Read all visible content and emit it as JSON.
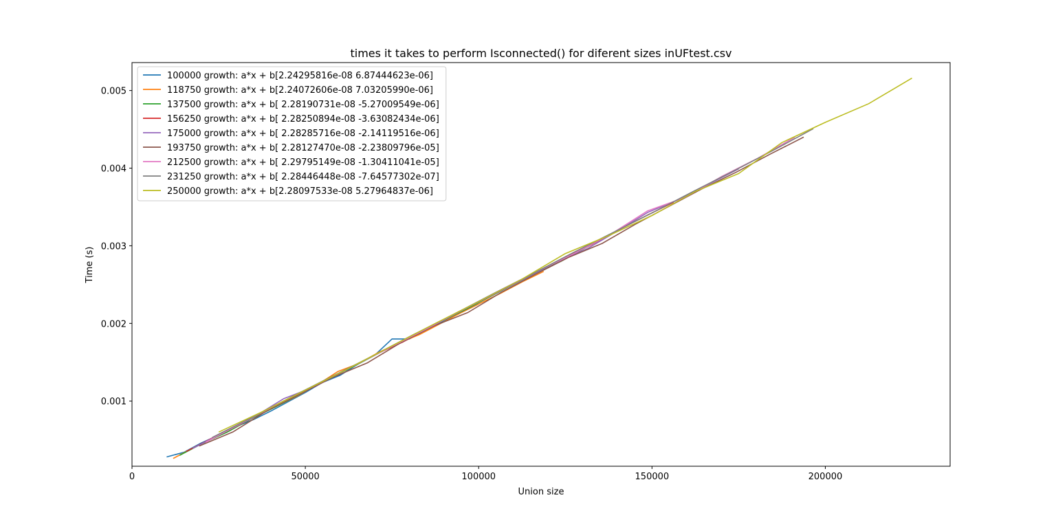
{
  "chart_data": {
    "type": "line",
    "title": "times it takes to perform Isconnected() for diferent sizes inUFtest.csv",
    "xlabel": "Union size",
    "ylabel": "Time  (s)",
    "xlim": [
      0,
      236000
    ],
    "ylim": [
      0.00016,
      0.00536
    ],
    "xticks": [
      0,
      50000,
      100000,
      150000,
      200000
    ],
    "xtick_labels": [
      "0",
      "50000",
      "100000",
      "150000",
      "200000"
    ],
    "yticks": [
      0.001,
      0.002,
      0.003,
      0.004,
      0.005
    ],
    "ytick_labels": [
      "0.001",
      "0.002",
      "0.003",
      "0.004",
      "0.005"
    ],
    "grid": false,
    "legend_position": "upper-left",
    "series": [
      {
        "name": "100000 growth: a*x + b[2.24295816e-08 6.87444623e-06]",
        "color": "#1f77b4",
        "x": [
          10000,
          15000,
          20000,
          25000,
          30000,
          35000,
          40000,
          45000,
          50000,
          55000,
          60000,
          65000,
          70000,
          75000,
          80000,
          85000,
          90000,
          95000,
          100000
        ],
        "y": [
          0.00028,
          0.00034,
          0.00046,
          0.00056,
          0.00067,
          0.00076,
          0.00087,
          0.00099,
          0.00111,
          0.00124,
          0.00133,
          0.00147,
          0.00159,
          0.0018,
          0.0018,
          0.00192,
          0.00203,
          0.00214,
          0.00225
        ]
      },
      {
        "name": "118750 growth: a*x + b[2.24072606e-08 7.03205990e-06]",
        "color": "#ff7f0e",
        "x": [
          11875,
          17813,
          23750,
          29688,
          35625,
          41563,
          47500,
          53438,
          59375,
          65313,
          71250,
          77188,
          83125,
          89063,
          95000,
          100938,
          106875,
          112813,
          118750
        ],
        "y": [
          0.00026,
          0.0004,
          0.00053,
          0.00066,
          0.0008,
          0.00093,
          0.00106,
          0.00121,
          0.00138,
          0.00148,
          0.00163,
          0.00175,
          0.00186,
          0.002,
          0.00214,
          0.00227,
          0.0024,
          0.00254,
          0.00267
        ]
      },
      {
        "name": "137500 growth: a*x + b[ 2.28190731e-08 -5.27009549e-06]",
        "color": "#2ca02c",
        "x": [
          13750,
          20625,
          27500,
          34375,
          41250,
          48125,
          55000,
          61875,
          68750,
          75625,
          82500,
          89375,
          96250,
          103125,
          110000,
          116875,
          123750,
          130625,
          137500
        ],
        "y": [
          0.0003,
          0.00046,
          0.0006,
          0.00077,
          0.00092,
          0.00108,
          0.00125,
          0.0014,
          0.00156,
          0.00172,
          0.00187,
          0.00203,
          0.00218,
          0.00234,
          0.0025,
          0.00266,
          0.0028,
          0.00297,
          0.00313
        ]
      },
      {
        "name": "156250 growth: a*x + b[ 2.28250894e-08 -3.63082434e-06]",
        "color": "#d62728",
        "x": [
          15625,
          23438,
          31250,
          39063,
          46875,
          54688,
          62500,
          70313,
          78125,
          85938,
          93750,
          101563,
          109375,
          117188,
          125000,
          132813,
          140625,
          148438,
          156250
        ],
        "y": [
          0.00035,
          0.00053,
          0.0007,
          0.00089,
          0.00107,
          0.00124,
          0.00142,
          0.0016,
          0.00176,
          0.00195,
          0.00214,
          0.00231,
          0.00249,
          0.00267,
          0.00285,
          0.00302,
          0.00321,
          0.00339,
          0.00356
        ]
      },
      {
        "name": "175000 growth: a*x + b[ 2.28285716e-08 -2.14119516e-06]",
        "color": "#9467bd",
        "x": [
          17500,
          26250,
          35000,
          43750,
          52500,
          61250,
          70000,
          78750,
          87500,
          96250,
          105000,
          113750,
          122500,
          131250,
          140000,
          148750,
          157500,
          166250,
          175000
        ],
        "y": [
          0.00039,
          0.00059,
          0.00079,
          0.00103,
          0.00118,
          0.00139,
          0.00159,
          0.00179,
          0.00199,
          0.00219,
          0.00239,
          0.00259,
          0.00279,
          0.00296,
          0.00319,
          0.00343,
          0.00359,
          0.00379,
          0.00399
        ]
      },
      {
        "name": "193750 growth: a*x + b[ 2.28127470e-08 -2.23809796e-05]",
        "color": "#8c564b",
        "x": [
          19375,
          29063,
          38750,
          48438,
          58125,
          67813,
          77500,
          87188,
          96875,
          106563,
          116250,
          125938,
          135625,
          145313,
          155000,
          164688,
          174375,
          184063,
          193750
        ],
        "y": [
          0.00042,
          0.0006,
          0.00087,
          0.00109,
          0.00131,
          0.00149,
          0.00175,
          0.00197,
          0.00214,
          0.0024,
          0.00263,
          0.00285,
          0.00303,
          0.00328,
          0.00351,
          0.00374,
          0.00395,
          0.00418,
          0.0044
        ]
      },
      {
        "name": "212500 growth: a*x + b[ 2.29795149e-08 -1.30411041e-05]",
        "color": "#e377c2",
        "x": [
          21250,
          31875,
          42500,
          53125,
          63750,
          74375,
          85000,
          95625,
          106250,
          116875,
          127500,
          138125,
          148750,
          159375,
          170000,
          180625,
          191250
        ],
        "y": [
          0.00047,
          0.00072,
          0.00097,
          0.00121,
          0.00145,
          0.00169,
          0.00193,
          0.00218,
          0.00243,
          0.00267,
          0.0029,
          0.00315,
          0.00345,
          0.00362,
          0.00389,
          0.00413,
          0.0044
        ]
      },
      {
        "name": "231250 growth: a*x + b[ 2.28446448e-08 -7.64577302e-07]",
        "color": "#7f7f7f",
        "x": [
          23125,
          34688,
          46250,
          57813,
          69375,
          80938,
          92500,
          104063,
          115625,
          127188,
          138750,
          150313,
          161875,
          173438,
          185000,
          196563
        ],
        "y": [
          0.00053,
          0.00079,
          0.00106,
          0.00132,
          0.00158,
          0.00185,
          0.00211,
          0.00238,
          0.00264,
          0.00291,
          0.00317,
          0.00343,
          0.0037,
          0.00396,
          0.00423,
          0.00451
        ]
      },
      {
        "name": "250000 growth: a*x + b[2.28097533e-08 5.27964837e-06]",
        "color": "#bcbd22",
        "x": [
          25000,
          37500,
          50000,
          62500,
          75000,
          87500,
          100000,
          112500,
          125000,
          137500,
          150000,
          162500,
          175000,
          187500,
          200000,
          212500,
          225000
        ],
        "y": [
          0.0006,
          0.00086,
          0.00114,
          0.00142,
          0.00171,
          0.002,
          0.00228,
          0.00257,
          0.0029,
          0.00313,
          0.00339,
          0.0037,
          0.00393,
          0.00433,
          0.00459,
          0.00483,
          0.00516
        ]
      }
    ]
  }
}
